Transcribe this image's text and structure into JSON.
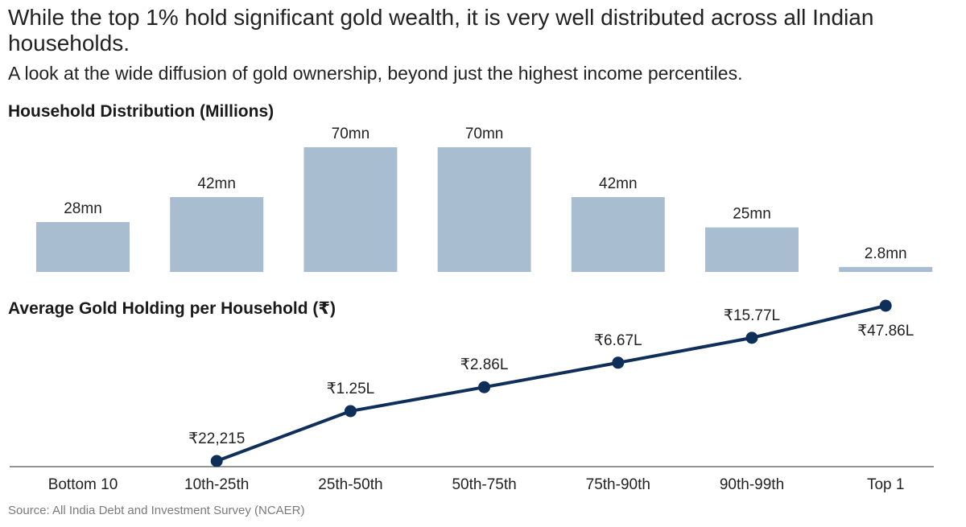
{
  "title": "While the top 1% hold significant gold wealth, it is very well distributed across all Indian households.",
  "subtitle": "A look at the wide diffusion of gold ownership, beyond just the highest income percentiles.",
  "source": "Source: All India Debt and Investment Survey (NCAER)",
  "colors": {
    "bar": "#a9bdd0",
    "line": "#0f2f5a",
    "baseline": "#555555",
    "text": "#222222"
  },
  "chart_data": [
    {
      "type": "bar",
      "title": "Household Distribution (Millions)",
      "categories": [
        "Bottom 10",
        "10th-25th",
        "25th-50th",
        "50th-75th",
        "75th-90th",
        "90th-99th",
        "Top 1"
      ],
      "values": [
        28,
        42,
        70,
        70,
        42,
        25,
        2.8
      ],
      "data_labels": [
        "28mn",
        "42mn",
        "70mn",
        "70mn",
        "42mn",
        "25mn",
        "2.8mn"
      ],
      "ylim": [
        0,
        70
      ],
      "grid": false,
      "legend": "none"
    },
    {
      "type": "line",
      "title": "Average Gold Holding per Household (₹)",
      "categories": [
        "Bottom 10",
        "10th-25th",
        "25th-50th",
        "50th-75th",
        "75th-90th",
        "90th-99th",
        "Top 1"
      ],
      "points": [
        {
          "category": "10th-25th",
          "value": 22215,
          "label": "₹22,215"
        },
        {
          "category": "25th-50th",
          "value": 125000,
          "label": "₹1.25L"
        },
        {
          "category": "50th-75th",
          "value": 286000,
          "label": "₹2.86L"
        },
        {
          "category": "75th-90th",
          "value": 667000,
          "label": "₹6.67L"
        },
        {
          "category": "90th-99th",
          "value": 1577000,
          "label": "₹15.77L"
        },
        {
          "category": "Top 1",
          "value": 4786000,
          "label": "₹47.86L"
        }
      ],
      "grid": false,
      "legend": "none"
    }
  ]
}
